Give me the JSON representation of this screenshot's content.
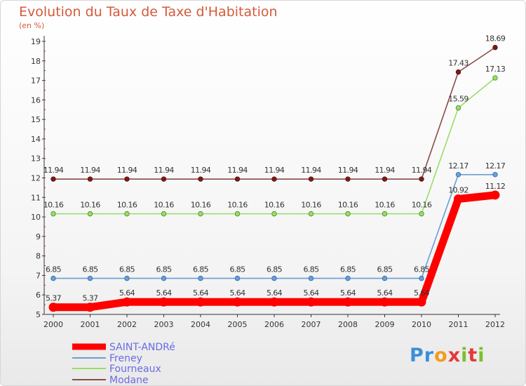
{
  "title": "Evolution du Taux de Taxe d'Habitation",
  "subtitle": "(en %)",
  "logo": {
    "letters": [
      "P",
      "r",
      "o",
      "x",
      "i",
      "t",
      "i"
    ],
    "colors": [
      "#3a8fd8",
      "#3a8fd8",
      "#f39c1f",
      "#e23a3a",
      "#7bbf2a",
      "#e23a3a",
      "#7bbf2a"
    ]
  },
  "chart_data": {
    "type": "line",
    "title": "Evolution du Taux de Taxe d'Habitation",
    "subtitle": "(en %)",
    "xlabel": "",
    "ylabel": "",
    "x": [
      "2000",
      "2001",
      "2002",
      "2003",
      "2004",
      "2005",
      "2006",
      "2007",
      "2008",
      "2009",
      "2010",
      "2011",
      "2012"
    ],
    "ylim": [
      5,
      19
    ],
    "yticks": [
      5,
      6,
      7,
      8,
      9,
      10,
      11,
      12,
      13,
      14,
      15,
      16,
      17,
      18,
      19
    ],
    "grid": false,
    "legend_position": "bottom-left",
    "series": [
      {
        "name": "SAINT-ANDRé",
        "color": "#ff0000",
        "values": [
          5.37,
          5.37,
          5.64,
          5.64,
          5.64,
          5.64,
          5.64,
          5.64,
          5.64,
          5.64,
          5.64,
          10.92,
          11.12
        ],
        "labels": [
          "5.37",
          "5.37",
          "5.64",
          "5.64",
          "5.64",
          "5.64",
          "5.64",
          "5.64",
          "5.64",
          "5.64",
          "5.64",
          "10.92",
          "11.12"
        ]
      },
      {
        "name": "Freney",
        "color": "#6a9fd4",
        "values": [
          6.85,
          6.85,
          6.85,
          6.85,
          6.85,
          6.85,
          6.85,
          6.85,
          6.85,
          6.85,
          6.85,
          12.17,
          12.17
        ],
        "labels": [
          "6.85",
          "6.85",
          "6.85",
          "6.85",
          "6.85",
          "6.85",
          "6.85",
          "6.85",
          "6.85",
          "6.85",
          "6.85",
          "12.17",
          "12.17"
        ]
      },
      {
        "name": "Fourneaux",
        "color": "#99dd66",
        "values": [
          10.16,
          10.16,
          10.16,
          10.16,
          10.16,
          10.16,
          10.16,
          10.16,
          10.16,
          10.16,
          10.16,
          15.59,
          17.13
        ],
        "labels": [
          "10.16",
          "10.16",
          "10.16",
          "10.16",
          "10.16",
          "10.16",
          "10.16",
          "10.16",
          "10.16",
          "10.16",
          "10.16",
          "15.59",
          "17.13"
        ]
      },
      {
        "name": "Modane",
        "color": "#8b4a4a",
        "values": [
          11.94,
          11.94,
          11.94,
          11.94,
          11.94,
          11.94,
          11.94,
          11.94,
          11.94,
          11.94,
          11.94,
          17.43,
          18.69
        ],
        "labels": [
          "11.94",
          "11.94",
          "11.94",
          "11.94",
          "11.94",
          "11.94",
          "11.94",
          "11.94",
          "11.94",
          "11.94",
          "11.94",
          "17.43",
          "18.69"
        ]
      }
    ]
  }
}
